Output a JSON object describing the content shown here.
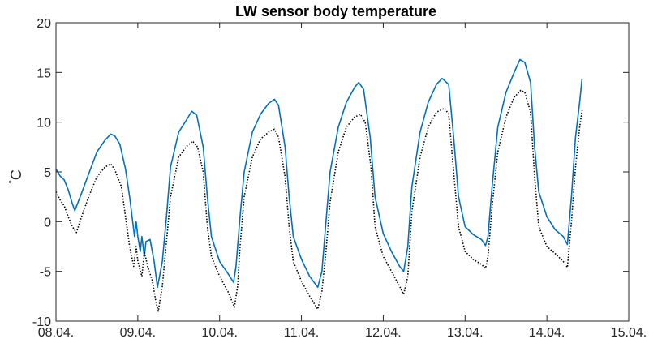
{
  "chart_data": {
    "type": "line",
    "title": "LW sensor body temperature",
    "ylabel_degree": "°",
    "ylabel_unit": "C",
    "xlabel": "",
    "xlim": [
      0,
      7
    ],
    "ylim": [
      -10,
      20
    ],
    "xticks": [
      0,
      1,
      2,
      3,
      4,
      5,
      6,
      7
    ],
    "xtick_labels": [
      "08.04.",
      "09.04.",
      "10.04.",
      "11.04.",
      "12.04.",
      "13.04.",
      "14.04.",
      "15.04."
    ],
    "yticks": [
      -10,
      -5,
      0,
      5,
      10,
      15,
      20
    ],
    "ytick_labels": [
      "-10",
      "-5",
      "0",
      "5",
      "10",
      "15",
      "20"
    ],
    "series": [
      {
        "name": "blue",
        "color": "#0072BD",
        "style": "solid",
        "points": [
          [
            0.0,
            5.3
          ],
          [
            0.05,
            4.6
          ],
          [
            0.1,
            4.2
          ],
          [
            0.15,
            3.2
          ],
          [
            0.2,
            1.8
          ],
          [
            0.23,
            1.1
          ],
          [
            0.3,
            2.6
          ],
          [
            0.4,
            4.8
          ],
          [
            0.5,
            7.0
          ],
          [
            0.6,
            8.2
          ],
          [
            0.67,
            8.8
          ],
          [
            0.72,
            8.6
          ],
          [
            0.78,
            7.8
          ],
          [
            0.85,
            5.3
          ],
          [
            0.9,
            2.5
          ],
          [
            0.93,
            0.5
          ],
          [
            0.96,
            -1.5
          ],
          [
            0.98,
            0.0
          ],
          [
            1.0,
            -1.5
          ],
          [
            1.03,
            -3.0
          ],
          [
            1.05,
            -1.5
          ],
          [
            1.08,
            -3.5
          ],
          [
            1.1,
            -2.0
          ],
          [
            1.15,
            -1.8
          ],
          [
            1.2,
            -4.0
          ],
          [
            1.24,
            -6.6
          ],
          [
            1.3,
            -4.0
          ],
          [
            1.35,
            0.5
          ],
          [
            1.4,
            5.5
          ],
          [
            1.5,
            9.0
          ],
          [
            1.6,
            10.3
          ],
          [
            1.66,
            11.1
          ],
          [
            1.72,
            10.7
          ],
          [
            1.8,
            7.5
          ],
          [
            1.85,
            2.5
          ],
          [
            1.9,
            -1.5
          ],
          [
            2.0,
            -4.0
          ],
          [
            2.1,
            -5.2
          ],
          [
            2.17,
            -6.1
          ],
          [
            2.2,
            -4.5
          ],
          [
            2.25,
            0.5
          ],
          [
            2.3,
            5.0
          ],
          [
            2.4,
            9.0
          ],
          [
            2.5,
            10.8
          ],
          [
            2.6,
            11.9
          ],
          [
            2.67,
            12.3
          ],
          [
            2.72,
            11.7
          ],
          [
            2.8,
            7.5
          ],
          [
            2.85,
            2.5
          ],
          [
            2.9,
            -1.5
          ],
          [
            3.0,
            -3.8
          ],
          [
            3.1,
            -5.5
          ],
          [
            3.2,
            -6.6
          ],
          [
            3.25,
            -5.0
          ],
          [
            3.3,
            0.0
          ],
          [
            3.35,
            5.0
          ],
          [
            3.45,
            9.5
          ],
          [
            3.55,
            12.0
          ],
          [
            3.65,
            13.5
          ],
          [
            3.7,
            14.0
          ],
          [
            3.76,
            13.3
          ],
          [
            3.84,
            8.5
          ],
          [
            3.9,
            2.5
          ],
          [
            4.0,
            -1.2
          ],
          [
            4.1,
            -3.0
          ],
          [
            4.2,
            -4.5
          ],
          [
            4.25,
            -5.0
          ],
          [
            4.3,
            -2.5
          ],
          [
            4.35,
            3.5
          ],
          [
            4.45,
            9.0
          ],
          [
            4.55,
            12.0
          ],
          [
            4.65,
            13.8
          ],
          [
            4.72,
            14.4
          ],
          [
            4.8,
            13.8
          ],
          [
            4.86,
            8.5
          ],
          [
            4.92,
            2.5
          ],
          [
            5.0,
            -0.5
          ],
          [
            5.1,
            -1.3
          ],
          [
            5.2,
            -1.8
          ],
          [
            5.25,
            -2.4
          ],
          [
            5.28,
            -1.5
          ],
          [
            5.33,
            3.5
          ],
          [
            5.4,
            9.5
          ],
          [
            5.5,
            13.0
          ],
          [
            5.6,
            15.0
          ],
          [
            5.67,
            16.3
          ],
          [
            5.73,
            16.0
          ],
          [
            5.8,
            14.0
          ],
          [
            5.85,
            7.5
          ],
          [
            5.9,
            3.0
          ],
          [
            6.0,
            0.5
          ],
          [
            6.1,
            -0.8
          ],
          [
            6.2,
            -1.5
          ],
          [
            6.25,
            -2.3
          ],
          [
            6.3,
            2.5
          ],
          [
            6.35,
            8.5
          ],
          [
            6.4,
            12.0
          ],
          [
            6.43,
            14.4
          ]
        ]
      },
      {
        "name": "black",
        "color": "#000000",
        "style": "dotted",
        "points": [
          [
            0.0,
            3.0
          ],
          [
            0.05,
            2.2
          ],
          [
            0.1,
            1.6
          ],
          [
            0.15,
            0.5
          ],
          [
            0.2,
            -0.5
          ],
          [
            0.25,
            -1.1
          ],
          [
            0.3,
            0.2
          ],
          [
            0.4,
            2.5
          ],
          [
            0.5,
            4.5
          ],
          [
            0.6,
            5.5
          ],
          [
            0.67,
            5.8
          ],
          [
            0.72,
            5.2
          ],
          [
            0.8,
            3.5
          ],
          [
            0.85,
            0.5
          ],
          [
            0.9,
            -2.5
          ],
          [
            0.95,
            -4.5
          ],
          [
            0.98,
            -2.5
          ],
          [
            1.0,
            -4.0
          ],
          [
            1.05,
            -5.5
          ],
          [
            1.08,
            -3.0
          ],
          [
            1.12,
            -4.5
          ],
          [
            1.18,
            -6.0
          ],
          [
            1.22,
            -8.0
          ],
          [
            1.25,
            -9.0
          ],
          [
            1.3,
            -6.5
          ],
          [
            1.35,
            -2.0
          ],
          [
            1.4,
            2.5
          ],
          [
            1.5,
            6.5
          ],
          [
            1.6,
            7.6
          ],
          [
            1.67,
            8.1
          ],
          [
            1.73,
            7.5
          ],
          [
            1.8,
            5.0
          ],
          [
            1.85,
            -0.5
          ],
          [
            1.9,
            -3.5
          ],
          [
            2.0,
            -5.5
          ],
          [
            2.1,
            -7.0
          ],
          [
            2.18,
            -8.6
          ],
          [
            2.22,
            -6.5
          ],
          [
            2.25,
            -2.5
          ],
          [
            2.3,
            2.5
          ],
          [
            2.4,
            6.5
          ],
          [
            2.5,
            8.3
          ],
          [
            2.6,
            9.0
          ],
          [
            2.67,
            9.3
          ],
          [
            2.72,
            8.5
          ],
          [
            2.8,
            4.5
          ],
          [
            2.85,
            -0.5
          ],
          [
            2.9,
            -4.0
          ],
          [
            3.0,
            -6.0
          ],
          [
            3.1,
            -7.5
          ],
          [
            3.2,
            -8.8
          ],
          [
            3.25,
            -7.0
          ],
          [
            3.3,
            -3.0
          ],
          [
            3.35,
            2.0
          ],
          [
            3.45,
            7.0
          ],
          [
            3.55,
            9.5
          ],
          [
            3.65,
            10.5
          ],
          [
            3.72,
            10.8
          ],
          [
            3.78,
            10.0
          ],
          [
            3.85,
            5.5
          ],
          [
            3.9,
            -0.5
          ],
          [
            4.0,
            -3.5
          ],
          [
            4.1,
            -5.0
          ],
          [
            4.2,
            -6.5
          ],
          [
            4.25,
            -7.3
          ],
          [
            4.3,
            -5.5
          ],
          [
            4.35,
            1.0
          ],
          [
            4.45,
            6.5
          ],
          [
            4.55,
            9.5
          ],
          [
            4.65,
            11.0
          ],
          [
            4.75,
            11.4
          ],
          [
            4.8,
            10.8
          ],
          [
            4.86,
            5.0
          ],
          [
            4.92,
            -0.5
          ],
          [
            5.0,
            -3.0
          ],
          [
            5.1,
            -3.8
          ],
          [
            5.2,
            -4.3
          ],
          [
            5.25,
            -4.7
          ],
          [
            5.28,
            -3.5
          ],
          [
            5.33,
            1.5
          ],
          [
            5.4,
            7.0
          ],
          [
            5.5,
            10.5
          ],
          [
            5.6,
            12.5
          ],
          [
            5.68,
            13.2
          ],
          [
            5.73,
            13.0
          ],
          [
            5.8,
            11.0
          ],
          [
            5.85,
            4.5
          ],
          [
            5.9,
            -0.5
          ],
          [
            6.0,
            -2.5
          ],
          [
            6.1,
            -3.2
          ],
          [
            6.2,
            -4.0
          ],
          [
            6.25,
            -4.6
          ],
          [
            6.3,
            0.0
          ],
          [
            6.35,
            5.5
          ],
          [
            6.4,
            9.5
          ],
          [
            6.43,
            11.2
          ]
        ]
      }
    ]
  }
}
